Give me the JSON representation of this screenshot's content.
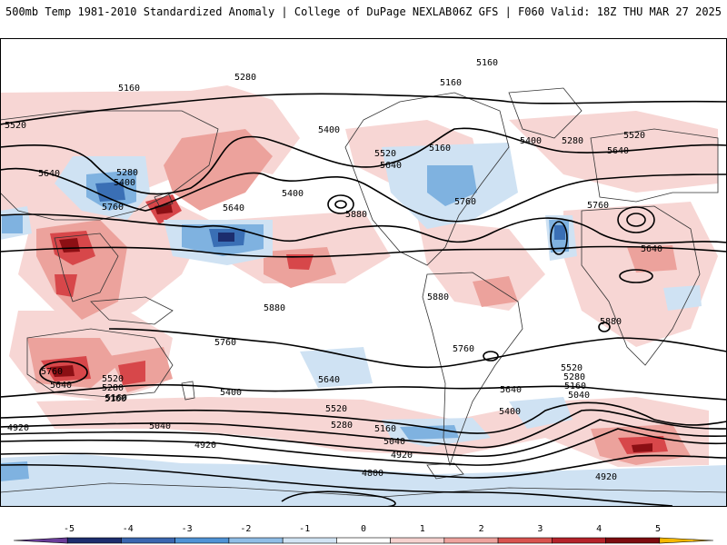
{
  "header": {
    "left": "500mb Temp 1981-2010 Standardized Anomaly | College of DuPage NEXLAB",
    "right": "06Z GFS | F060 Valid: 18Z THU MAR 27 2025"
  },
  "map": {
    "projection": "global cylindrical",
    "field": "500mb temperature standardized anomaly (shaded) and 500mb height contours (dam)",
    "contour_labels": [
      "5280",
      "5160",
      "5520",
      "5640",
      "5400",
      "5280",
      "5640",
      "5760",
      "5400",
      "5880",
      "5400",
      "5160",
      "5520",
      "5640",
      "5160",
      "5760",
      "5880",
      "5880",
      "5400",
      "5280",
      "5640",
      "5520",
      "5760",
      "5640",
      "5880",
      "5760",
      "5760",
      "5760",
      "5640",
      "5520",
      "5280",
      "5160",
      "5400",
      "5640",
      "5520",
      "5280",
      "5160",
      "5040",
      "5400",
      "5520",
      "5280",
      "5160",
      "5040",
      "5640",
      "4920",
      "4920",
      "5040",
      "4920",
      "4800",
      "4920",
      "5160",
      "5160"
    ]
  },
  "colorbar": {
    "ticks": [
      "-5",
      "-4",
      "-3",
      "-2",
      "-1",
      "0",
      "1",
      "2",
      "3",
      "4",
      "5"
    ],
    "colors": [
      "#6a3d9a",
      "#1c2d6e",
      "#3a66b0",
      "#4f93d6",
      "#8fbde6",
      "#d2e4f4",
      "#ffffff",
      "#f6d2cf",
      "#eea39e",
      "#d9534f",
      "#b5222a",
      "#7d0b0f",
      "#f5b800"
    ]
  }
}
